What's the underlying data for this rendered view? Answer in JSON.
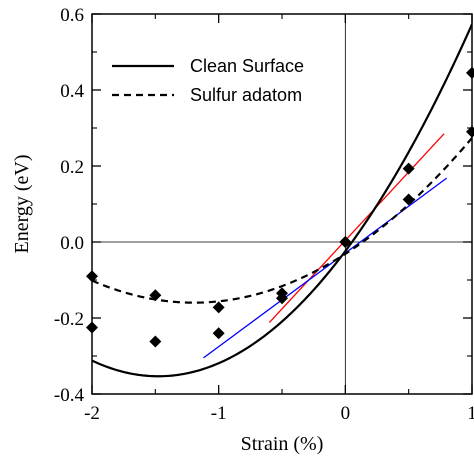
{
  "chart_data": {
    "type": "scatter",
    "title": "",
    "xlabel": "Strain (%)",
    "ylabel": "Energy (eV)",
    "xlim": [
      -2,
      1
    ],
    "ylim": [
      -0.4,
      0.6
    ],
    "xticks": [
      -2,
      -1,
      0,
      1
    ],
    "xtick_labels": [
      "-2",
      "-1",
      "0",
      "1"
    ],
    "yticks": [
      -0.4,
      -0.2,
      0.0,
      0.2,
      0.4,
      0.6
    ],
    "ytick_labels": [
      "-0.4",
      "-0.2",
      "0.0",
      "0.2",
      "0.4",
      "0.6"
    ],
    "grid": false,
    "reference_lines": {
      "x0": true,
      "y0": true
    },
    "legend": {
      "placement": "top-left",
      "entries": [
        {
          "label": "Clean Surface",
          "style": "solid"
        },
        {
          "label": "Sulfur adatom",
          "style": "dashed"
        }
      ]
    },
    "series": [
      {
        "name": "Clean Surface",
        "line_style": "solid",
        "color": "#000000",
        "marker": "diamond",
        "points": [
          {
            "x": -2.0,
            "y": -0.225
          },
          {
            "x": -1.5,
            "y": -0.262
          },
          {
            "x": -1.0,
            "y": -0.24
          },
          {
            "x": -0.5,
            "y": -0.148
          },
          {
            "x": 0.0,
            "y": 0.0
          },
          {
            "x": 0.5,
            "y": 0.193
          },
          {
            "x": 1.0,
            "y": 0.445
          }
        ],
        "fit": {
          "type": "quadratic",
          "a": 0.151,
          "b": 0.446,
          "c": -0.024
        }
      },
      {
        "name": "Sulfur adatom",
        "line_style": "dashed",
        "color": "#000000",
        "marker": "diamond",
        "points": [
          {
            "x": -2.0,
            "y": -0.09
          },
          {
            "x": -1.5,
            "y": -0.14
          },
          {
            "x": -1.0,
            "y": -0.172
          },
          {
            "x": -0.5,
            "y": -0.135
          },
          {
            "x": 0.0,
            "y": 0.0
          },
          {
            "x": 0.5,
            "y": 0.112
          },
          {
            "x": 1.0,
            "y": 0.29
          }
        ],
        "fit": {
          "type": "quadratic",
          "a": 0.0899,
          "b": 0.215,
          "c": -0.0311
        }
      }
    ],
    "tangent_lines": [
      {
        "color": "#ff0000",
        "x": [
          -0.6,
          0.78
        ],
        "y": [
          -0.212,
          0.285
        ]
      },
      {
        "color": "#0000ff",
        "x": [
          -1.12,
          0.8
        ],
        "y": [
          -0.305,
          0.168
        ]
      }
    ]
  }
}
